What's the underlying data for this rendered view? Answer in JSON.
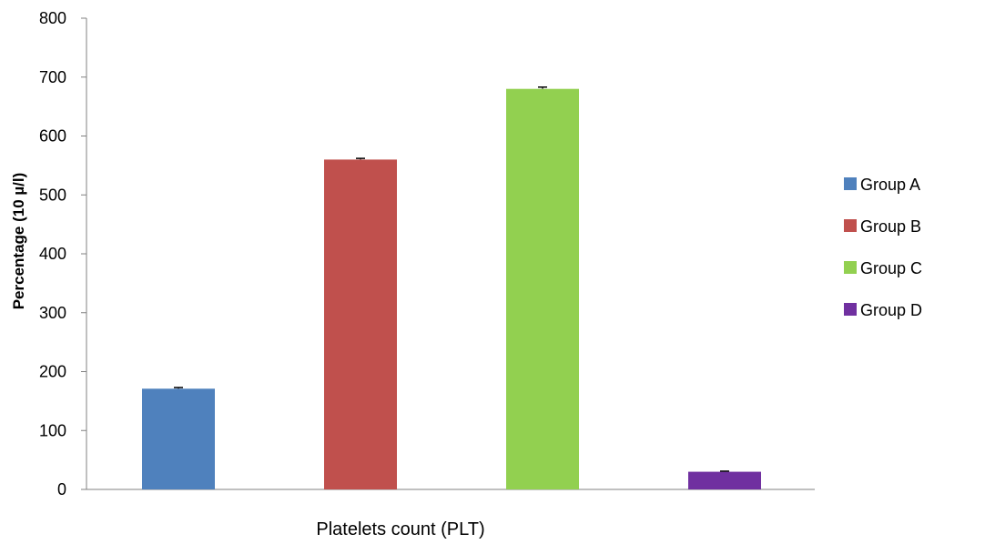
{
  "chart_data": {
    "type": "bar",
    "title": "",
    "xlabel": "Platelets count (PLT)",
    "ylabel": "Percentage (10 µ/l)",
    "ylim": [
      0,
      800
    ],
    "yticks": [
      "0",
      "100",
      "200",
      "300",
      "400",
      "500",
      "600",
      "700",
      "800"
    ],
    "grid": false,
    "legend_position": "right",
    "categories": [
      ""
    ],
    "series": [
      {
        "name": "Group A",
        "values": [
          171
        ],
        "error": [
          2
        ],
        "color": "#4f81bd"
      },
      {
        "name": "Group B",
        "values": [
          560
        ],
        "error": [
          2
        ],
        "color": "#c0504d"
      },
      {
        "name": "Group C",
        "values": [
          680
        ],
        "error": [
          3
        ],
        "color": "#92d050"
      },
      {
        "name": "Group D",
        "values": [
          30
        ],
        "error": [
          1
        ],
        "color": "#7030a0"
      }
    ]
  }
}
